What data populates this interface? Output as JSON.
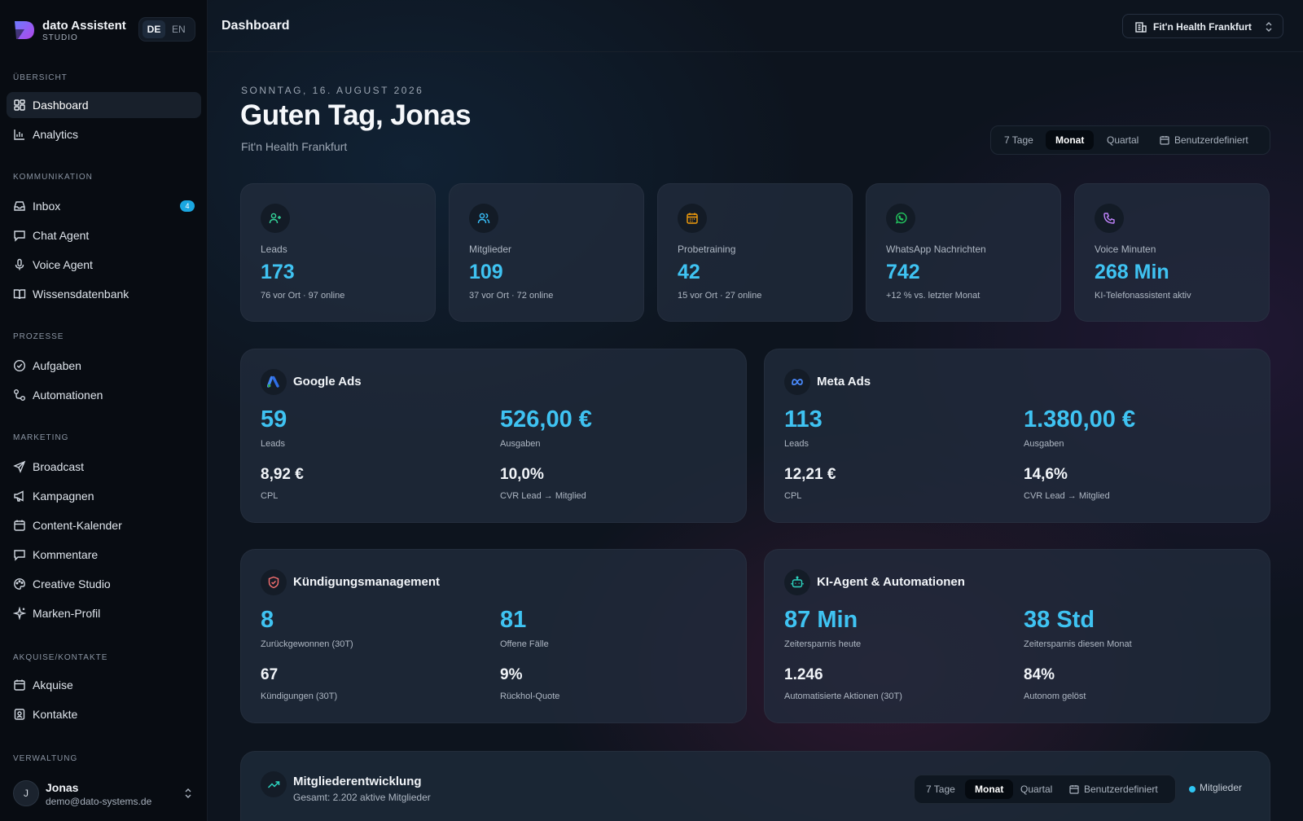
{
  "brand": {
    "name": "dato Assistent",
    "sub": "STUDIO"
  },
  "lang": {
    "de": "DE",
    "en": "EN"
  },
  "sidebar": {
    "sections": [
      {
        "title": "ÜBERSICHT"
      },
      {
        "title": "KOMMUNIKATION"
      },
      {
        "title": "PROZESSE"
      },
      {
        "title": "MARKETING"
      },
      {
        "title": "AKQUISE/KONTAKTE"
      },
      {
        "title": "VERWALTUNG"
      }
    ],
    "items": {
      "dashboard": "Dashboard",
      "analytics": "Analytics",
      "inbox": "Inbox",
      "inbox_badge": "4",
      "chat_agent": "Chat Agent",
      "voice_agent": "Voice Agent",
      "wissensdatenbank": "Wissensdatenbank",
      "aufgaben": "Aufgaben",
      "automationen": "Automationen",
      "broadcast": "Broadcast",
      "kampagnen": "Kampagnen",
      "content_kalender": "Content-Kalender",
      "kommentare": "Kommentare",
      "creative_studio": "Creative Studio",
      "marken_profil": "Marken-Profil",
      "akquise": "Akquise",
      "kontakte": "Kontakte"
    }
  },
  "user": {
    "initial": "J",
    "name": "Jonas",
    "email": "demo@dato-systems.de"
  },
  "header": {
    "title": "Dashboard",
    "location": "Fit'n Health Frankfurt"
  },
  "greeting": {
    "date": "SONNTAG, 16. AUGUST 2026",
    "title": "Guten Tag, Jonas",
    "subtitle": "Fit'n Health Frankfurt"
  },
  "range": {
    "opt1": "7 Tage",
    "opt2": "Monat",
    "opt3": "Quartal",
    "opt4": "Benutzerdefiniert"
  },
  "kpis": [
    {
      "label": "Leads",
      "value": "173",
      "sub": "76 vor Ort · 97 online"
    },
    {
      "label": "Mitglieder",
      "value": "109",
      "sub": "37 vor Ort · 72 online"
    },
    {
      "label": "Probetraining",
      "value": "42",
      "sub": "15 vor Ort · 27 online"
    },
    {
      "label": "WhatsApp Nachrichten",
      "value": "742",
      "sub": "+12 % vs. letzter Monat"
    },
    {
      "label": "Voice Minuten",
      "value": "268 Min",
      "sub": "KI-Telefonassistent aktiv"
    }
  ],
  "google_ads": {
    "title": "Google Ads",
    "leads": "59",
    "leads_label": "Leads",
    "spend": "526,00 €",
    "spend_label": "Ausgaben",
    "cpl": "8,92 €",
    "cpl_label": "CPL",
    "cvr": "10,0%",
    "cvr_label": "CVR Lead → Mitglied"
  },
  "meta_ads": {
    "title": "Meta Ads",
    "leads": "113",
    "leads_label": "Leads",
    "spend": "1.380,00 €",
    "spend_label": "Ausgaben",
    "cpl": "12,21 €",
    "cpl_label": "CPL",
    "cvr": "14,6%",
    "cvr_label": "CVR Lead → Mitglied"
  },
  "kuendigung": {
    "title": "Kündigungsmanagement",
    "won": "8",
    "won_label": "Zurückgewonnen (30T)",
    "open": "81",
    "open_label": "Offene Fälle",
    "cancel": "67",
    "cancel_label": "Kündigungen (30T)",
    "rate": "9%",
    "rate_label": "Rückhol-Quote"
  },
  "ki_agent": {
    "title": "KI-Agent & Automationen",
    "today": "87 Min",
    "today_label": "Zeitersparnis heute",
    "month": "38 Std",
    "month_label": "Zeitersparnis diesen Monat",
    "actions": "1.246",
    "actions_label": "Automatisierte Aktionen (30T)",
    "auto": "84%",
    "auto_label": "Autonom gelöst"
  },
  "members_chart": {
    "title": "Mitgliederentwicklung",
    "subtitle": "Gesamt: 2.202 aktive Mitglieder",
    "legend": "Mitglieder",
    "legend_color": "#2fc6f4"
  }
}
